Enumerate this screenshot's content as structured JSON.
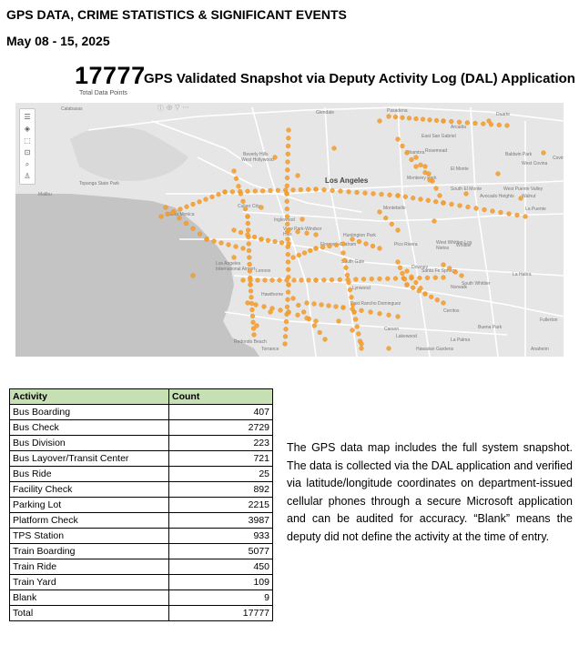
{
  "header": {
    "title": "GPS DATA, CRIME STATISTICS & SIGNIFICANT EVENTS",
    "dates": "May 08 - 15, 2025"
  },
  "snapshot": {
    "total": "17777",
    "total_label": "Total Data Points",
    "title": "GPS Validated Snapshot via Deputy Activity Log (DAL) Application"
  },
  "map": {
    "colors": {
      "land": "#e6e6e6",
      "ocean": "#c4c4c4",
      "road": "#ffffff",
      "point": "#f4a030",
      "point_stroke": "#e8891a"
    },
    "tools": [
      "list-icon",
      "layers-icon",
      "select-icon",
      "zoom-icon",
      "search-icon",
      "person-icon"
    ],
    "place_labels": [
      "Calabasas",
      "Glendale",
      "Pasadena",
      "Duarte",
      "Arcadia",
      "Topanga State Park",
      "Beverly Hills",
      "West Hollywood",
      "Alhambra",
      "East San Gabriel",
      "Rosemead",
      "El Monte",
      "Baldwin Park",
      "West Covina",
      "Covina",
      "Malibu",
      "Los Angeles",
      "Monterey Park",
      "South El Monte",
      "West Puente Valley",
      "Walnut",
      "Santa Monica",
      "Culver City",
      "Montebello",
      "Avocado Heights",
      "La Puente",
      "Inglewood",
      "View Park-Windsor Hills",
      "Florence-Graham",
      "Pico Rivera",
      "West Whittier-Los Nietos",
      "Whittier",
      "South Whittier",
      "La Habra",
      "Los Angeles International Airport",
      "Lennox",
      "South Gate",
      "Downey",
      "Santa Fe Springs",
      "Norwalk",
      "Hawthorne",
      "Lynwood",
      "East Rancho Dominguez",
      "Cerritos",
      "Fullerton",
      "Buena Park",
      "La Palma",
      "Redondo Beach",
      "Torrance",
      "Lakewood",
      "Anaheim",
      "Carson",
      "Hawaiian Gardens",
      "Huntington Park"
    ]
  },
  "table": {
    "headers": [
      "Activity",
      "Count"
    ],
    "rows": [
      [
        "Bus Boarding",
        "407"
      ],
      [
        "Bus Check",
        "2729"
      ],
      [
        "Bus Division",
        "223"
      ],
      [
        "Bus Layover/Transit Center",
        "721"
      ],
      [
        "Bus Ride",
        "25"
      ],
      [
        "Facility Check",
        "892"
      ],
      [
        "Parking Lot",
        "2215"
      ],
      [
        "Platform Check",
        "3987"
      ],
      [
        "TPS Station",
        "933"
      ],
      [
        "Train Boarding",
        "5077"
      ],
      [
        "Train Ride",
        "450"
      ],
      [
        "Train Yard",
        "109"
      ],
      [
        "Blank",
        "9"
      ]
    ],
    "total_label": "Total",
    "total_value": "17777"
  },
  "description": "The GPS data map includes the full system snapshot. The data is collected via the DAL application and verified via latitude/longitude coordinates on department-issued cellular phones through a secure Microsoft application and can be audited for accuracy. “Blank” means the deputy did not define the activity at the time of entry."
}
